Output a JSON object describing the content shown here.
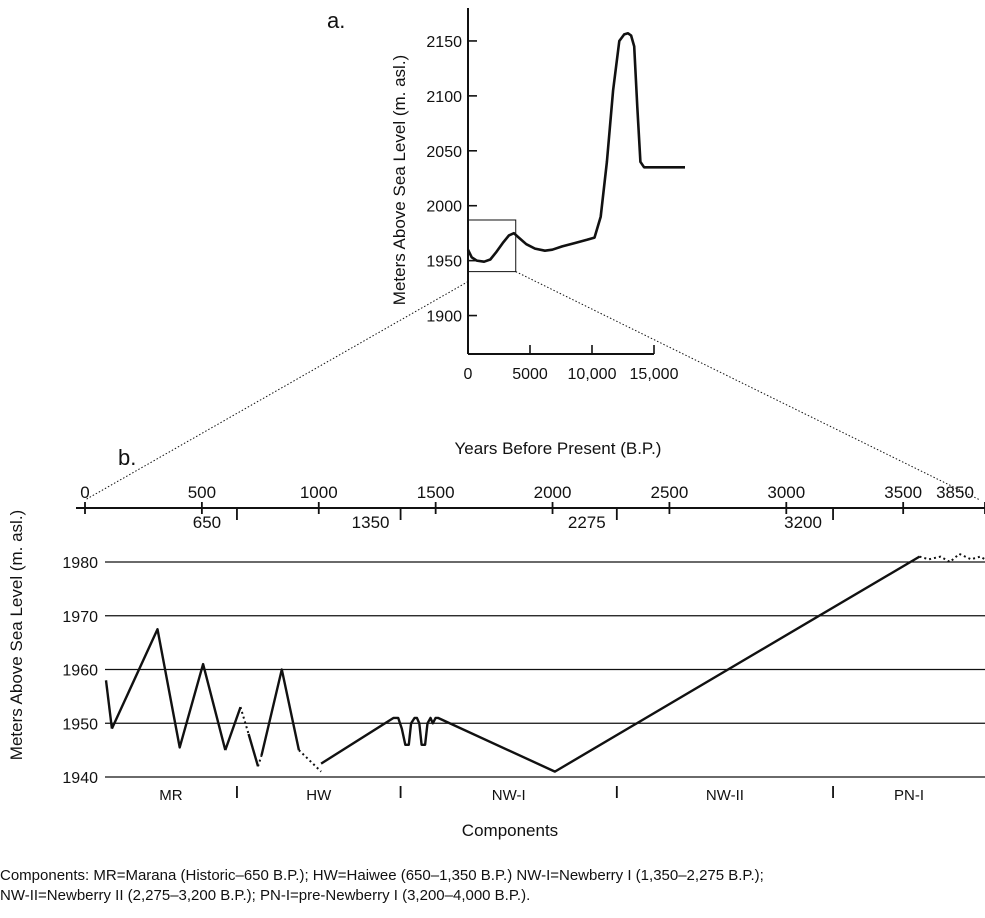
{
  "chart_data": [
    {
      "panel": "a.",
      "type": "line",
      "xlabel": "Years Before Present (B.P.)",
      "ylabel": "Meters Above Sea Level (m. asl.)",
      "xlim": [
        0,
        17500
      ],
      "ylim": [
        1865,
        2180
      ],
      "x_ticks": [
        0,
        5000,
        10000,
        15000
      ],
      "x_tick_labels": [
        "0",
        "5000",
        "10,000",
        "15,000"
      ],
      "y_ticks": [
        1900,
        1950,
        2000,
        2050,
        2100,
        2150
      ],
      "y_tick_labels": [
        "1900",
        "1950",
        "2000",
        "2050",
        "2100",
        "2150"
      ],
      "zoom_box": {
        "x": [
          0,
          3850
        ],
        "y": [
          1940,
          1987
        ]
      },
      "series": [
        {
          "x": [
            0,
            300,
            700,
            1300,
            1800,
            2300,
            2800,
            3300,
            3700,
            4100,
            4700,
            5400,
            6200,
            6800,
            7600,
            8600,
            9600,
            10200,
            10700,
            11200,
            11700,
            12200,
            12600,
            12900,
            13150,
            13400,
            13650,
            13900,
            14200,
            15000,
            17500
          ],
          "y": [
            1960,
            1953,
            1950,
            1949,
            1951,
            1958,
            1966,
            1973,
            1975,
            1971,
            1965,
            1961,
            1959,
            1960,
            1963,
            1966,
            1969,
            1971,
            1990,
            2040,
            2105,
            2150,
            2156,
            2157,
            2155,
            2145,
            2090,
            2040,
            2035,
            2035,
            2035
          ]
        }
      ]
    },
    {
      "panel": "b.",
      "type": "line",
      "xlabel": "Components",
      "ylabel": "Meters Above Sea Level (m. asl.)",
      "xlim": [
        0,
        3850
      ],
      "ylim": [
        1940,
        1980
      ],
      "x_tick_labels_top": [
        {
          "x": 0,
          "label": "0"
        },
        {
          "x": 500,
          "label": "500"
        },
        {
          "x": 1000,
          "label": "1000"
        },
        {
          "x": 1500,
          "label": "1500"
        },
        {
          "x": 2000,
          "label": "2000"
        },
        {
          "x": 2500,
          "label": "2500"
        },
        {
          "x": 3000,
          "label": "3000"
        },
        {
          "x": 3500,
          "label": "3500"
        },
        {
          "x": 3850,
          "label": "3850"
        }
      ],
      "x_tick_labels_bottom": [
        {
          "x": 650,
          "label": "650"
        },
        {
          "x": 1350,
          "label": "1350"
        },
        {
          "x": 2275,
          "label": "2275"
        },
        {
          "x": 3200,
          "label": "3200"
        }
      ],
      "y_ticks": [
        1940,
        1950,
        1960,
        1970,
        1980
      ],
      "y_tick_labels": [
        "1940",
        "1950",
        "1960",
        "1970",
        "1980"
      ],
      "components": [
        {
          "label": "MR",
          "x": [
            0,
            650
          ]
        },
        {
          "label": "HW",
          "x": [
            650,
            1350
          ]
        },
        {
          "label": "NW-I",
          "x": [
            1350,
            2275
          ]
        },
        {
          "label": "NW-II",
          "x": [
            2275,
            3200
          ]
        },
        {
          "label": "PN-I",
          "x": [
            3200,
            3850
          ]
        }
      ],
      "series": [
        {
          "style": "solid",
          "x": [
            90,
            115
          ],
          "y": [
            1958,
            1949
          ]
        },
        {
          "style": "solid",
          "x": [
            115,
            310,
            405,
            505,
            600
          ],
          "y": [
            1949,
            1967.5,
            1945.5,
            1961,
            1945
          ]
        },
        {
          "style": "solid",
          "x": [
            600,
            665
          ],
          "y": [
            1945,
            1953
          ]
        },
        {
          "style": "dotted",
          "x": [
            665,
            700
          ],
          "y": [
            1953,
            1948
          ]
        },
        {
          "style": "solid",
          "x": [
            700,
            740
          ],
          "y": [
            1948,
            1942
          ]
        },
        {
          "style": "dotted",
          "x": [
            740,
            755
          ],
          "y": [
            1942,
            1944
          ]
        },
        {
          "style": "solid",
          "x": [
            755,
            842,
            915
          ],
          "y": [
            1944,
            1960,
            1945
          ]
        },
        {
          "style": "dotted",
          "x": [
            915,
            1010
          ],
          "y": [
            1945,
            1941
          ]
        },
        {
          "style": "solid",
          "x": [
            1010,
            1320,
            1340,
            1355,
            1370,
            1385,
            1395,
            1410,
            1420,
            1430,
            1440,
            1455,
            1465,
            1478,
            1488,
            1500,
            1510,
            2010,
            3570
          ],
          "y": [
            1942.5,
            1951,
            1951,
            1949,
            1946,
            1946,
            1950,
            1951,
            1951,
            1950,
            1946,
            1946,
            1950,
            1951,
            1950,
            1951,
            1951,
            1941,
            1981
          ]
        },
        {
          "style": "dotted",
          "x": [
            3570,
            3610,
            3660,
            3700,
            3740,
            3790,
            3830,
            3850
          ],
          "y": [
            1981,
            1980.5,
            1981,
            1980,
            1981.5,
            1980.5,
            1981,
            1980.5
          ]
        }
      ]
    }
  ],
  "caption": [
    "Components: MR=Marana (Historic–650 B.P.); HW=Haiwee (650–1,350 B.P.) NW-I=Newberry I (1,350–2,275 B.P.);",
    "NW-II=Newberry II (2,275–3,200 B.P.); PN-I=pre-Newberry I (3,200–4,000 B.P.)."
  ],
  "colors": {
    "line": "#111111",
    "grid": "#111111",
    "background": "#ffffff"
  }
}
